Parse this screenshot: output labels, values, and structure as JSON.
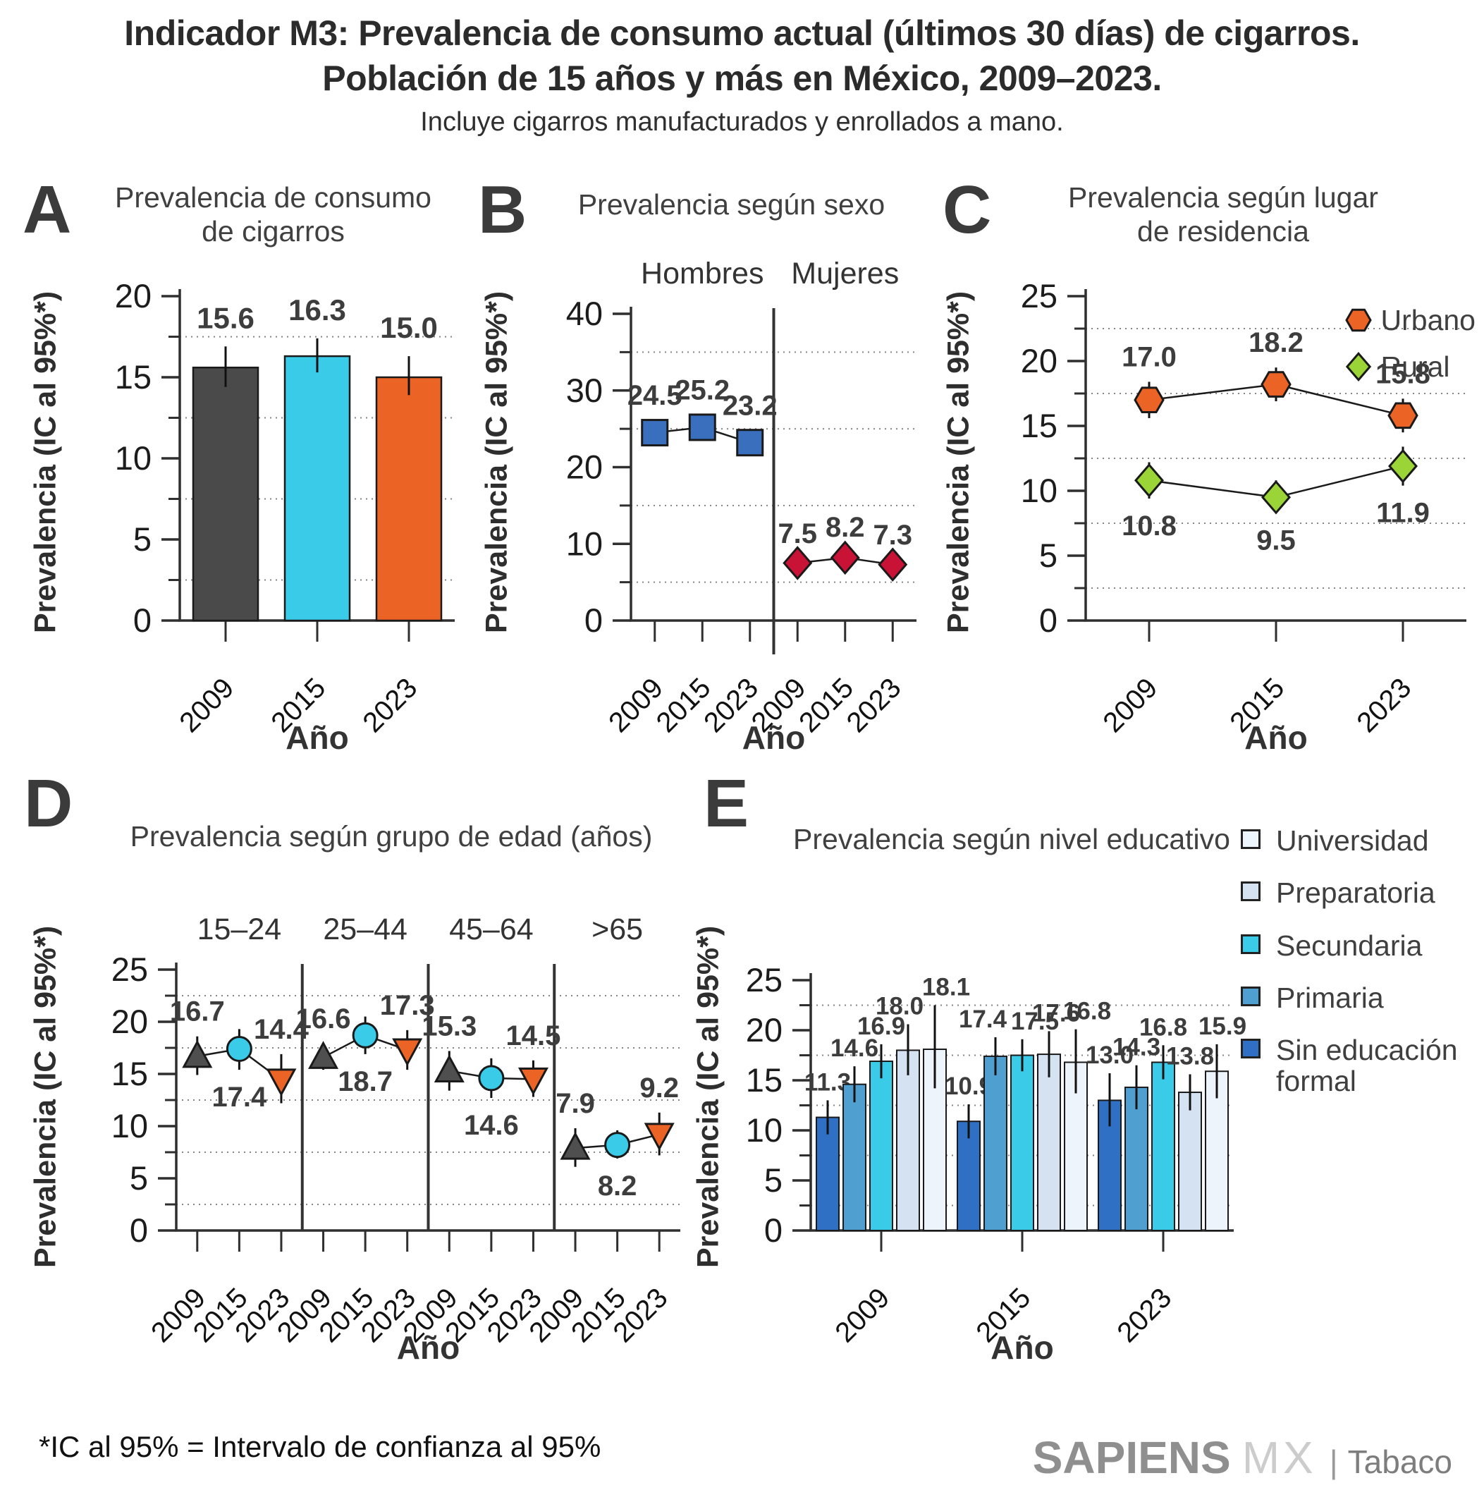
{
  "header": {
    "title_line1": "Indicador M3: Prevalencia de consumo actual (últimos 30 días) de cigarros.",
    "title_line2": "Población de 15 años y más en México, 2009–2023.",
    "subtitle": "Incluye cigarros manufacturados y enrollados a mano."
  },
  "shared": {
    "ylabel": "Prevalencia (IC al 95%*)",
    "xlabel": "Año"
  },
  "footer": {
    "note": "*IC al 95% = Intervalo de confianza al 95%",
    "brand_bold": "SAPIENS",
    "brand_light": "MX",
    "brand_sep": "|",
    "brand_sub": "Tabaco"
  },
  "chart_data": [
    {
      "panel": "A",
      "type": "bar",
      "title_lines": [
        "Prevalencia de consumo",
        "de cigarros"
      ],
      "ylabel": "Prevalencia (IC al 95%*)",
      "xlabel": "Año",
      "ylim": [
        0,
        20
      ],
      "ytick_step": 5,
      "grid": "midpoints-dotted",
      "x_labels": [
        "2009",
        "2015",
        "2023"
      ],
      "bars": [
        {
          "year": "2009",
          "value": 15.6,
          "ci": [
            14.4,
            16.9
          ],
          "color": "#4a4a4a"
        },
        {
          "year": "2015",
          "value": 16.3,
          "ci": [
            15.3,
            17.4
          ],
          "color": "#3acbe8"
        },
        {
          "year": "2023",
          "value": 15.0,
          "ci": [
            13.9,
            16.3
          ],
          "color": "#ec6425"
        }
      ]
    },
    {
      "panel": "B",
      "type": "points",
      "title_lines": [
        "Prevalencia según sexo"
      ],
      "ylabel": "Prevalencia (IC al 95%*)",
      "xlabel": "Año",
      "ylim": [
        0,
        40
      ],
      "ytick_step": 10,
      "grid": "midpoints-dotted",
      "slots": 6,
      "x_labels": [
        "2009",
        "2015",
        "2023",
        "2009",
        "2015",
        "2023"
      ],
      "group_headers": [
        {
          "text": "Hombres",
          "start": 0,
          "end": 2
        },
        {
          "text": "Mujeres",
          "start": 3,
          "end": 5
        }
      ],
      "dividers": [
        2.5
      ],
      "lines": [
        {
          "name": "Hombres",
          "points": [
            {
              "slot": 0,
              "value": 24.5,
              "ci": [
                22.9,
                26.1
              ],
              "marker": "square",
              "color": "#3a6fbe",
              "label_pos": "above"
            },
            {
              "slot": 1,
              "value": 25.2,
              "ci": [
                23.6,
                26.8
              ],
              "marker": "square",
              "color": "#3a6fbe",
              "label_pos": "above"
            },
            {
              "slot": 2,
              "value": 23.2,
              "ci": [
                21.5,
                24.8
              ],
              "marker": "square",
              "color": "#3a6fbe",
              "label_pos": "above"
            }
          ]
        },
        {
          "name": "Mujeres",
          "points": [
            {
              "slot": 3,
              "value": 7.5,
              "ci": [
                7.0,
                8.1
              ],
              "marker": "diamond",
              "color": "#c81236",
              "label_pos": "above"
            },
            {
              "slot": 4,
              "value": 8.2,
              "ci": [
                7.6,
                8.9
              ],
              "marker": "diamond",
              "color": "#c81236",
              "label_pos": "above"
            },
            {
              "slot": 5,
              "value": 7.3,
              "ci": [
                6.8,
                7.9
              ],
              "marker": "diamond",
              "color": "#c81236",
              "label_pos": "above"
            }
          ]
        }
      ]
    },
    {
      "panel": "C",
      "type": "points",
      "title_lines": [
        "Prevalencia según lugar",
        "de residencia"
      ],
      "ylabel": "Prevalencia (IC al 95%*)",
      "xlabel": "Año",
      "ylim": [
        0,
        25
      ],
      "ytick_step": 5,
      "grid": "midpoints-dotted",
      "slots": 3,
      "x_labels": [
        "2009",
        "2015",
        "2023"
      ],
      "legend": [
        {
          "name": "Urbano",
          "marker": "hexagon",
          "color": "#ec6425"
        },
        {
          "name": "Rural",
          "marker": "diamond",
          "color": "#9ad437"
        }
      ],
      "lines": [
        {
          "name": "Urbano",
          "points": [
            {
              "slot": 0,
              "value": 17.0,
              "ci": [
                15.6,
                18.4
              ],
              "marker": "hexagon",
              "color": "#ec6425",
              "label_pos": "above"
            },
            {
              "slot": 1,
              "value": 18.2,
              "ci": [
                16.9,
                19.5
              ],
              "marker": "hexagon",
              "color": "#ec6425",
              "label_pos": "above"
            },
            {
              "slot": 2,
              "value": 15.8,
              "ci": [
                14.5,
                17.1
              ],
              "marker": "hexagon",
              "color": "#ec6425",
              "label_pos": "above"
            }
          ]
        },
        {
          "name": "Rural",
          "points": [
            {
              "slot": 0,
              "value": 10.8,
              "ci": [
                9.4,
                12.2
              ],
              "marker": "diamond",
              "color": "#9ad437",
              "label_pos": "below"
            },
            {
              "slot": 1,
              "value": 9.5,
              "ci": [
                8.3,
                10.8
              ],
              "marker": "diamond",
              "color": "#9ad437",
              "label_pos": "below"
            },
            {
              "slot": 2,
              "value": 11.9,
              "ci": [
                10.4,
                13.4
              ],
              "marker": "diamond",
              "color": "#9ad437",
              "label_pos": "below"
            }
          ]
        }
      ]
    },
    {
      "panel": "D",
      "type": "points",
      "title_lines": [
        "Prevalencia según grupo de edad (años)"
      ],
      "ylabel": "Prevalencia (IC al 95%*)",
      "xlabel": "Año",
      "ylim": [
        0,
        25
      ],
      "ytick_step": 5,
      "grid": "midpoints-dotted",
      "slots": 12,
      "x_labels": [
        "2009",
        "2015",
        "2023",
        "2009",
        "2015",
        "2023",
        "2009",
        "2015",
        "2023",
        "2009",
        "2015",
        "2023"
      ],
      "group_headers": [
        {
          "text": "15–24",
          "start": 0,
          "end": 2
        },
        {
          "text": "25–44",
          "start": 3,
          "end": 5
        },
        {
          "text": "45–64",
          "start": 6,
          "end": 8
        },
        {
          "text": ">65",
          "start": 9,
          "end": 11
        }
      ],
      "dividers": [
        2.5,
        5.5,
        8.5
      ],
      "lines": [
        {
          "name": "15-24",
          "points": [
            {
              "slot": 0,
              "value": 16.7,
              "ci": [
                14.9,
                18.6
              ],
              "marker": "triangle-up",
              "color": "#4f4f4f",
              "label_pos": "above"
            },
            {
              "slot": 1,
              "value": 17.4,
              "ci": [
                15.4,
                19.3
              ],
              "marker": "circle",
              "color": "#3acbe8",
              "label_pos": "below"
            },
            {
              "slot": 2,
              "value": 14.4,
              "ci": [
                12.2,
                16.9
              ],
              "marker": "triangle-down",
              "color": "#ec6425",
              "label_pos": "above"
            }
          ]
        },
        {
          "name": "25-44",
          "points": [
            {
              "slot": 3,
              "value": 16.6,
              "ci": [
                15.4,
                17.9
              ],
              "marker": "triangle-up",
              "color": "#4f4f4f",
              "label_pos": "above"
            },
            {
              "slot": 4,
              "value": 18.7,
              "ci": [
                16.9,
                20.5
              ],
              "marker": "circle",
              "color": "#3acbe8",
              "label_pos": "below"
            },
            {
              "slot": 5,
              "value": 17.3,
              "ci": [
                15.4,
                19.2
              ],
              "marker": "triangle-down",
              "color": "#ec6425",
              "label_pos": "above"
            }
          ]
        },
        {
          "name": "45-64",
          "points": [
            {
              "slot": 6,
              "value": 15.3,
              "ci": [
                13.4,
                17.2
              ],
              "marker": "triangle-up",
              "color": "#4f4f4f",
              "label_pos": "above"
            },
            {
              "slot": 7,
              "value": 14.6,
              "ci": [
                12.7,
                16.5
              ],
              "marker": "circle",
              "color": "#3acbe8",
              "label_pos": "below"
            },
            {
              "slot": 8,
              "value": 14.5,
              "ci": [
                12.8,
                16.3
              ],
              "marker": "triangle-down",
              "color": "#ec6425",
              "label_pos": "above"
            }
          ]
        },
        {
          "name": ">65",
          "points": [
            {
              "slot": 9,
              "value": 7.9,
              "ci": [
                6.1,
                9.8
              ],
              "marker": "triangle-up",
              "color": "#4f4f4f",
              "label_pos": "above"
            },
            {
              "slot": 10,
              "value": 8.2,
              "ci": [
                6.9,
                9.6
              ],
              "marker": "circle",
              "color": "#3acbe8",
              "label_pos": "below"
            },
            {
              "slot": 11,
              "value": 9.2,
              "ci": [
                7.2,
                11.3
              ],
              "marker": "triangle-down",
              "color": "#ec6425",
              "label_pos": "above"
            }
          ]
        }
      ]
    },
    {
      "panel": "E",
      "type": "grouped-bar",
      "title_lines": [
        "Prevalencia según nivel educativo"
      ],
      "ylabel": "Prevalencia (IC al 95%*)",
      "xlabel": "Año",
      "ylim": [
        0,
        25
      ],
      "ytick_step": 5,
      "grid": "midpoints-dotted",
      "x_labels": [
        "2009",
        "2015",
        "2023"
      ],
      "series": [
        {
          "name": "Sin educación formal",
          "color": "#2f6fc4"
        },
        {
          "name": "Primaria",
          "color": "#4f9fd0"
        },
        {
          "name": "Secundaria",
          "color": "#3acbe8"
        },
        {
          "name": "Preparatoria",
          "color": "#d4e2f2"
        },
        {
          "name": "Universidad",
          "color": "#eef4fb"
        }
      ],
      "groups": [
        {
          "year": "2009",
          "values": [
            11.3,
            14.6,
            16.9,
            18.0,
            18.1
          ],
          "ci": [
            [
              9.6,
              13.0
            ],
            [
              12.8,
              16.4
            ],
            [
              15.2,
              18.6
            ],
            [
              15.5,
              20.6
            ],
            [
              14.2,
              22.5
            ]
          ],
          "label_dx": [
            0,
            0,
            0,
            -12,
            16
          ]
        },
        {
          "year": "2015",
          "values": [
            10.9,
            17.4,
            17.5,
            17.6,
            16.8
          ],
          "ci": [
            [
              9.2,
              12.6
            ],
            [
              15.5,
              19.3
            ],
            [
              15.9,
              19.1
            ],
            [
              15.3,
              19.9
            ],
            [
              13.7,
              20.1
            ]
          ],
          "label_dx": [
            0,
            -18,
            18,
            10,
            16
          ]
        },
        {
          "year": "2023",
          "values": [
            13.0,
            14.3,
            16.8,
            13.8,
            15.9
          ],
          "ci": [
            [
              10.4,
              15.7
            ],
            [
              12.1,
              16.5
            ],
            [
              15.1,
              18.5
            ],
            [
              12.0,
              15.6
            ],
            [
              13.2,
              18.6
            ]
          ],
          "label_dx": [
            0,
            0,
            0,
            0,
            8
          ]
        }
      ],
      "legend_order": [
        4,
        3,
        2,
        1,
        0
      ]
    }
  ]
}
